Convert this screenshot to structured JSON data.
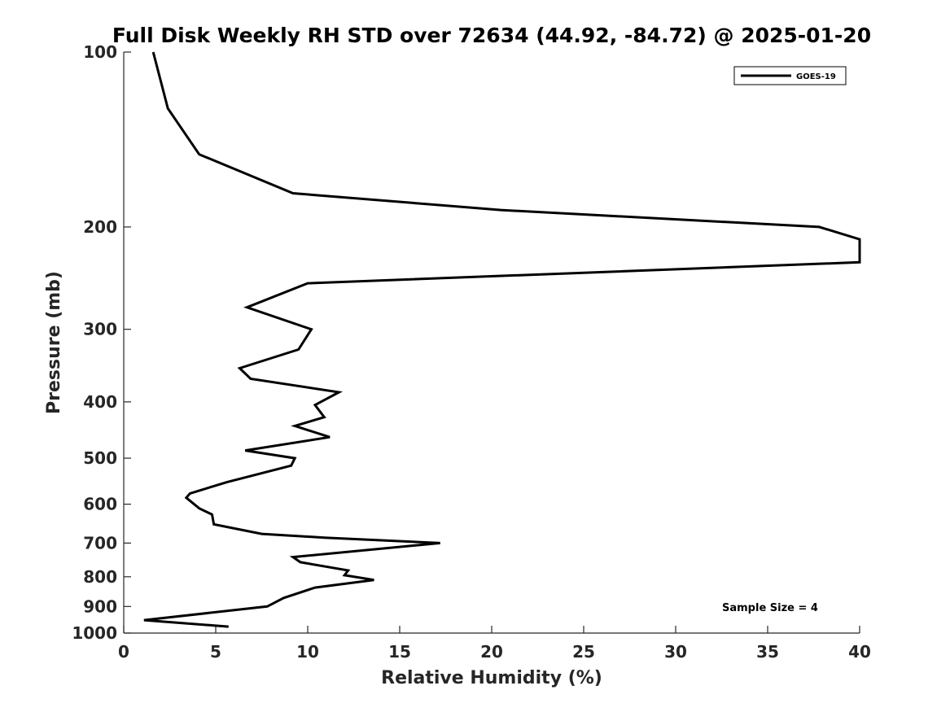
{
  "chart_data": {
    "type": "line",
    "title": "Full Disk Weekly RH STD over 72634 (44.92, -84.72) @ 2025-01-20",
    "xlabel": "Relative Humidity (%)",
    "ylabel": "Pressure (mb)",
    "xlim": [
      0,
      40
    ],
    "ylim": [
      100,
      1000
    ],
    "yscale": "log",
    "yreversed": true,
    "xticks": [
      0,
      5,
      10,
      15,
      20,
      25,
      30,
      35,
      40
    ],
    "xtick_labels": [
      "0",
      "5",
      "10",
      "15",
      "20",
      "25",
      "30",
      "35",
      "40"
    ],
    "yticks": [
      100,
      200,
      300,
      400,
      500,
      600,
      700,
      800,
      900,
      1000
    ],
    "ytick_labels": [
      "100",
      "200",
      "300",
      "400",
      "500",
      "600",
      "700",
      "800",
      "900",
      "1000"
    ],
    "grid": false,
    "legend": {
      "position": "top-right",
      "entries": [
        "GOES-19"
      ]
    },
    "annotation": "Sample Size = 4",
    "series": [
      {
        "name": "GOES-19",
        "color": "#000000",
        "x": [
          1.6,
          2.4,
          4.1,
          9.2,
          20.5,
          37.8,
          40.0,
          40.0,
          10.0,
          6.7,
          10.2,
          9.5,
          6.3,
          6.9,
          11.7,
          10.4,
          10.9,
          9.3,
          11.2,
          6.6,
          9.3,
          9.1,
          5.6,
          3.6,
          3.4,
          4.1,
          4.8,
          4.9,
          7.5,
          10.9,
          17.2,
          9.2,
          9.6,
          12.2,
          12.0,
          13.6,
          10.4,
          8.7,
          7.8,
          1.1,
          5.7
        ],
        "y": [
          100,
          125,
          150,
          175,
          187,
          200,
          210,
          230,
          250,
          275,
          300,
          325,
          350,
          365,
          385,
          405,
          425,
          440,
          460,
          485,
          500,
          515,
          550,
          575,
          585,
          610,
          625,
          650,
          675,
          685,
          700,
          740,
          755,
          780,
          795,
          810,
          835,
          870,
          900,
          950,
          975
        ]
      }
    ]
  }
}
